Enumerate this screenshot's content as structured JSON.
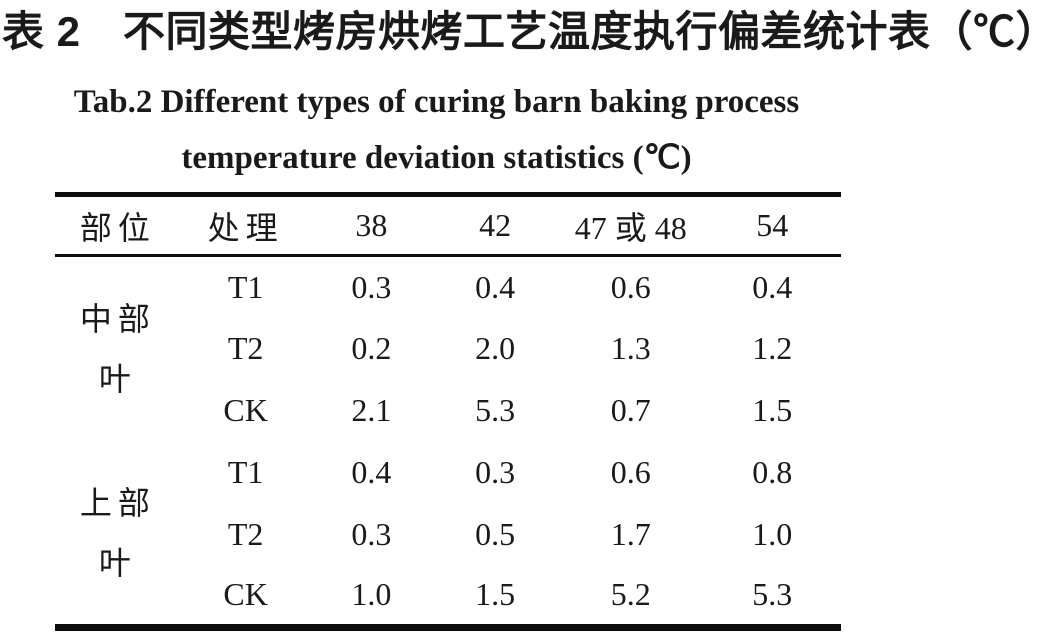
{
  "titles": {
    "cn": "表 2　不同类型烤房烘烤工艺温度执行偏差统计表（℃）",
    "en_line1": "Tab.2 Different types of curing barn baking process",
    "en_line2": "temperature deviation statistics (℃)"
  },
  "table": {
    "columns": [
      "部位",
      "处理",
      "38",
      "42",
      "47 或 48",
      "54"
    ],
    "groups": [
      {
        "part_line1": "中部",
        "part_line2": "叶",
        "rows": [
          {
            "treatment": "T1",
            "values": [
              "0.3",
              "0.4",
              "0.6",
              "0.4"
            ]
          },
          {
            "treatment": "T2",
            "values": [
              "0.2",
              "2.0",
              "1.3",
              "1.2"
            ]
          },
          {
            "treatment": "CK",
            "values": [
              "2.1",
              "5.3",
              "0.7",
              "1.5"
            ]
          }
        ]
      },
      {
        "part_line1": "上部",
        "part_line2": "叶",
        "rows": [
          {
            "treatment": "T1",
            "values": [
              "0.4",
              "0.3",
              "0.6",
              "0.8"
            ]
          },
          {
            "treatment": "T2",
            "values": [
              "0.3",
              "0.5",
              "1.7",
              "1.0"
            ]
          },
          {
            "treatment": "CK",
            "values": [
              "1.0",
              "1.5",
              "5.2",
              "5.3"
            ]
          }
        ]
      }
    ]
  },
  "colors": {
    "text": "#1a1a1a",
    "rule": "#0d0d0d",
    "background": "#ffffff"
  }
}
